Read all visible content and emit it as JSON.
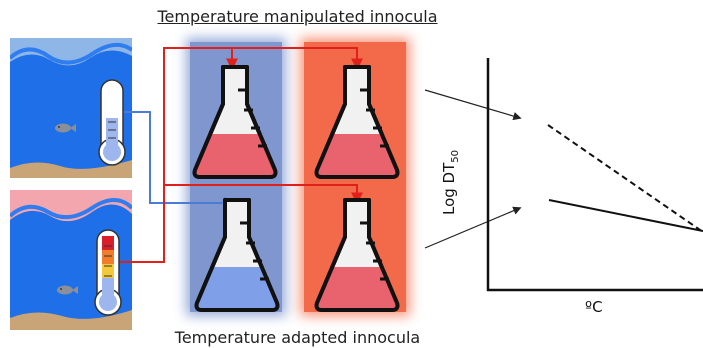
{
  "titles": {
    "manipulated": "Temperature manipulated innocula",
    "adapted": "Temperature adapted innocula"
  },
  "plot": {
    "x_label": "ºC",
    "y_label_main": "Log DT",
    "y_label_sub": "50"
  },
  "colors": {
    "cold_column": "#7f96cf",
    "warm_column": "#f26a4a",
    "red_arrow": "#e0201b",
    "blue_arrow": "#4a7bd6",
    "water": "#1e6fe8",
    "sky_cold": "#8eb6e6",
    "sky_warm": "#f3a6ad",
    "sand": "#c8a476",
    "liquid_red": "#e8636d",
    "liquid_blue": "#7f9fe8"
  },
  "icons": {
    "fish": "fish-icon",
    "thermometer_cold": "thermometer-cold-icon",
    "thermometer_warm": "thermometer-warm-icon",
    "flask": "flask-icon"
  }
}
